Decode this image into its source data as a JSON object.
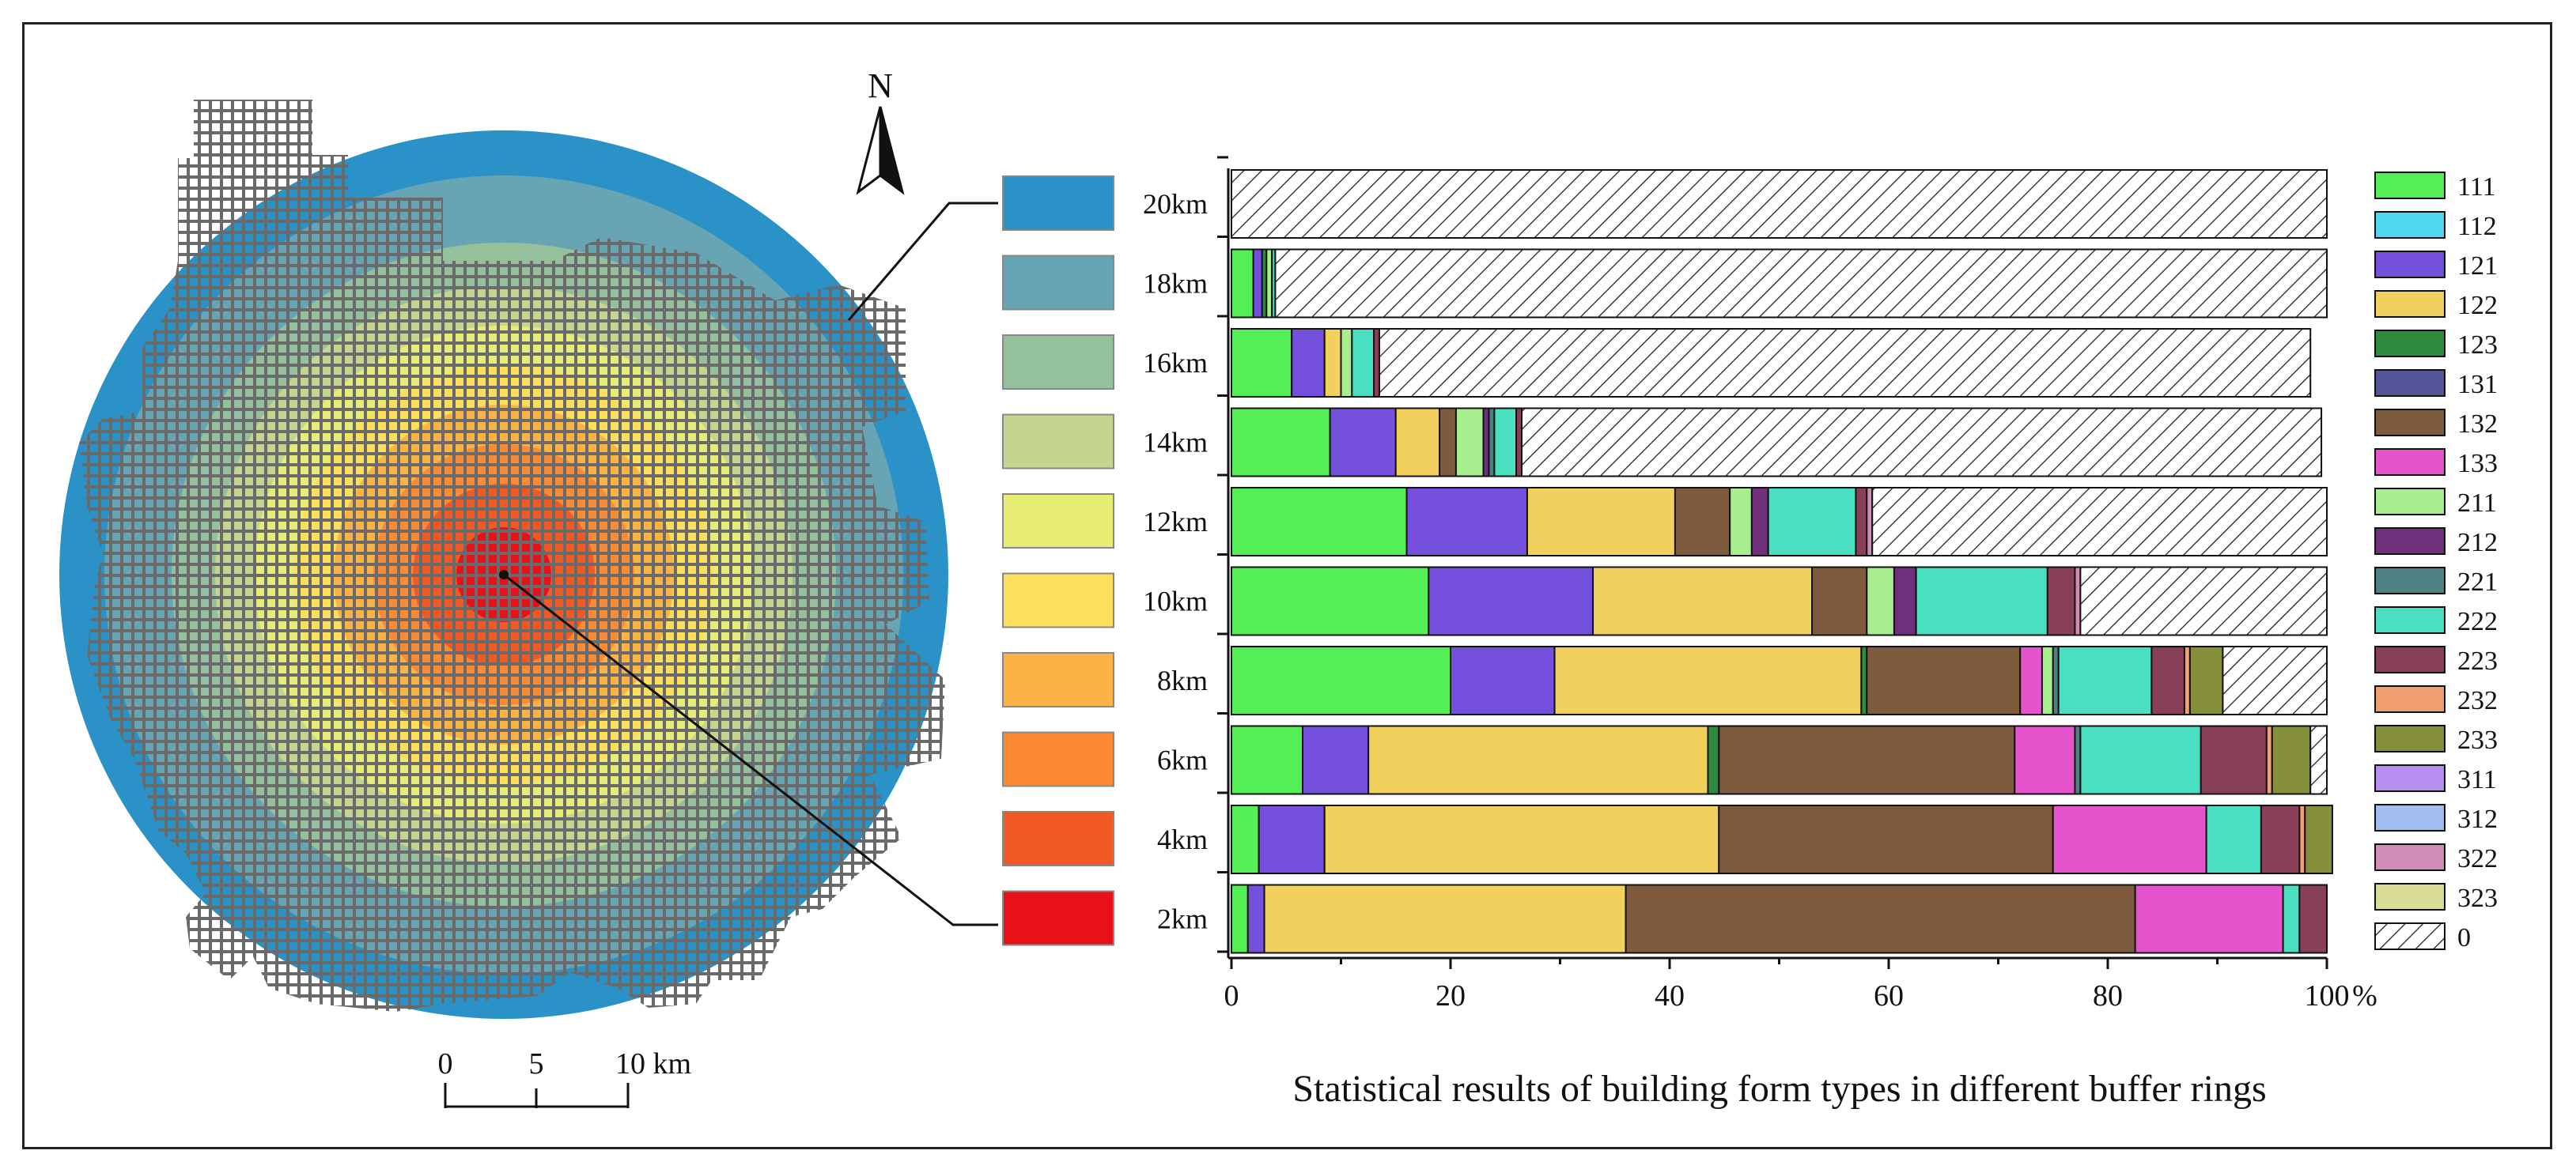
{
  "map": {
    "north_label": "N",
    "scale_ticks": [
      "0",
      "5",
      "10 km"
    ],
    "ring_colors": [
      "#e8111a",
      "#f35a23",
      "#fb8a33",
      "#fcb244",
      "#fce05b",
      "#e7ec74",
      "#c3d58e",
      "#95c09c",
      "#68a5b4",
      "#2a92c7"
    ]
  },
  "chart_data": {
    "type": "bar",
    "orientation": "horizontal",
    "stacked": true,
    "title": "Statistical results of building form types in different buffer rings",
    "xlabel": "%",
    "xlim": [
      0,
      100
    ],
    "x_ticks": [
      "0",
      "20",
      "40",
      "60",
      "80",
      "100"
    ],
    "categories": [
      "20km",
      "18km",
      "16km",
      "14km",
      "12km",
      "10km",
      "8km",
      "6km",
      "4km",
      "2km"
    ],
    "ring_colors": [
      "#2a92c7",
      "#68a5b4",
      "#95c09c",
      "#c3d58e",
      "#e7ec74",
      "#fce05b",
      "#fcb244",
      "#fb8a33",
      "#f35a23",
      "#e8111a"
    ],
    "legend_position": "right",
    "series": [
      {
        "name": "111",
        "color": "#54ef54",
        "values": [
          0,
          2,
          5.5,
          9,
          16,
          18,
          20,
          6.5,
          2.5,
          1.5
        ]
      },
      {
        "name": "112",
        "color": "#4fd7f0",
        "values": [
          0,
          0,
          0,
          0,
          0,
          0,
          0,
          0,
          0,
          0
        ]
      },
      {
        "name": "121",
        "color": "#7550dc",
        "values": [
          0,
          0.8,
          3,
          6,
          11,
          15,
          9.5,
          6,
          6,
          1.5
        ]
      },
      {
        "name": "122",
        "color": "#f2d05d",
        "values": [
          0,
          0,
          1.5,
          4,
          13.5,
          20,
          28,
          31,
          36,
          33
        ]
      },
      {
        "name": "123",
        "color": "#2f8b3e",
        "values": [
          0,
          0.4,
          0,
          0,
          0,
          0,
          0.5,
          1,
          0,
          0
        ]
      },
      {
        "name": "131",
        "color": "#55559a",
        "values": [
          0,
          0,
          0,
          0,
          0,
          0,
          0,
          0,
          0,
          0
        ]
      },
      {
        "name": "132",
        "color": "#7e5b3c",
        "values": [
          0,
          0,
          0,
          1.5,
          5,
          5,
          14,
          27,
          30.5,
          46.5
        ]
      },
      {
        "name": "133",
        "color": "#e554cc",
        "values": [
          0,
          0,
          0,
          0,
          0,
          0,
          2,
          5.5,
          14,
          13.5
        ]
      },
      {
        "name": "211",
        "color": "#a6ee8e",
        "values": [
          0,
          0.5,
          1,
          2.5,
          2,
          2.5,
          1,
          0,
          0,
          0
        ]
      },
      {
        "name": "212",
        "color": "#6f2f7a",
        "values": [
          0,
          0,
          0,
          0.5,
          1.5,
          2,
          0,
          0,
          0,
          0
        ]
      },
      {
        "name": "221",
        "color": "#4d8080",
        "values": [
          0,
          0,
          0,
          0.5,
          0,
          0,
          0.5,
          0.5,
          0,
          0
        ]
      },
      {
        "name": "222",
        "color": "#49dfc0",
        "values": [
          0,
          0.3,
          2,
          2,
          8,
          12,
          8.5,
          11,
          5,
          1.5
        ]
      },
      {
        "name": "223",
        "color": "#874058",
        "values": [
          0,
          0,
          0.5,
          0.5,
          1,
          2.5,
          3,
          6,
          3.5,
          2.5
        ]
      },
      {
        "name": "232",
        "color": "#f0a070",
        "values": [
          0,
          0,
          0,
          0,
          0,
          0,
          0.5,
          0.5,
          0.5,
          0
        ]
      },
      {
        "name": "233",
        "color": "#86903a",
        "values": [
          0,
          0,
          0,
          0,
          0,
          0,
          3,
          3.5,
          2.5,
          0
        ]
      },
      {
        "name": "311",
        "color": "#b68ff0",
        "values": [
          0,
          0,
          0,
          0,
          0,
          0,
          0,
          0,
          0,
          0
        ]
      },
      {
        "name": "312",
        "color": "#a2bdf0",
        "values": [
          0,
          0,
          0,
          0,
          0,
          0,
          0,
          0,
          0,
          0
        ]
      },
      {
        "name": "322",
        "color": "#cf8eb6",
        "values": [
          0,
          0,
          0,
          0,
          0.5,
          0.5,
          0,
          0,
          0,
          0
        ]
      },
      {
        "name": "323",
        "color": "#d9dc96",
        "values": [
          0,
          0,
          0,
          0,
          0,
          0,
          0,
          0,
          0,
          0
        ]
      },
      {
        "name": "0",
        "color": "hatch",
        "values": [
          100,
          96,
          85,
          73,
          41.5,
          22.5,
          9.5,
          1.5,
          0,
          0
        ]
      }
    ]
  }
}
